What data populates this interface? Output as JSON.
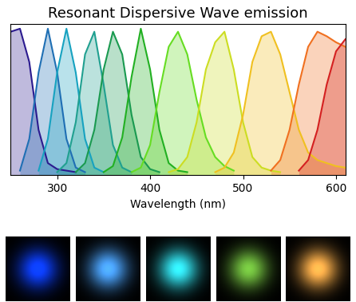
{
  "chart_data": {
    "type": "area",
    "title": "Resonant Dispersive Wave emission",
    "x_label": "Wavelength (nm)",
    "xlim": [
      250,
      610
    ],
    "xticks": [
      300,
      400,
      500,
      600
    ],
    "ylim": [
      0,
      1.0
    ],
    "tick_labels": "x",
    "grid": false,
    "series": [
      {
        "color": "#2b1b8f",
        "x": [
          250,
          260,
          270,
          280,
          290,
          300,
          310,
          320
        ],
        "values": [
          0.95,
          0.97,
          0.75,
          0.3,
          0.08,
          0.04,
          0.03,
          0.02
        ]
      },
      {
        "color": "#1f6fb4",
        "x": [
          260,
          270,
          280,
          290,
          300,
          310,
          320,
          330
        ],
        "values": [
          0.03,
          0.24,
          0.68,
          0.97,
          0.68,
          0.24,
          0.05,
          0.02
        ]
      },
      {
        "color": "#17a2c0",
        "x": [
          280,
          290,
          300,
          310,
          320,
          330,
          340,
          350
        ],
        "values": [
          0.03,
          0.24,
          0.68,
          0.97,
          0.68,
          0.24,
          0.05,
          0.02
        ]
      },
      {
        "color": "#20a090",
        "x": [
          300,
          310,
          320,
          330,
          340,
          350,
          360,
          370,
          380
        ],
        "values": [
          0.02,
          0.08,
          0.35,
          0.8,
          0.95,
          0.6,
          0.2,
          0.05,
          0.02
        ]
      },
      {
        "color": "#1a9a50",
        "x": [
          320,
          330,
          340,
          350,
          360,
          370,
          380,
          390,
          400,
          410
        ],
        "values": [
          0.02,
          0.08,
          0.3,
          0.7,
          0.95,
          0.8,
          0.4,
          0.12,
          0.04,
          0.02
        ]
      },
      {
        "color": "#22b022",
        "x": [
          350,
          360,
          370,
          380,
          390,
          400,
          410,
          420,
          430,
          440
        ],
        "values": [
          0.02,
          0.06,
          0.25,
          0.65,
          0.97,
          0.7,
          0.3,
          0.08,
          0.03,
          0.02
        ]
      },
      {
        "color": "#66dd22",
        "x": [
          380,
          390,
          400,
          410,
          420,
          430,
          440,
          450,
          460,
          470,
          480,
          490
        ],
        "values": [
          0.02,
          0.05,
          0.2,
          0.55,
          0.85,
          0.95,
          0.8,
          0.5,
          0.25,
          0.12,
          0.06,
          0.03
        ]
      },
      {
        "color": "#ccdd22",
        "x": [
          420,
          430,
          440,
          450,
          460,
          470,
          480,
          490,
          500,
          510,
          520,
          530,
          540
        ],
        "values": [
          0.02,
          0.04,
          0.12,
          0.35,
          0.7,
          0.88,
          0.95,
          0.7,
          0.35,
          0.12,
          0.05,
          0.03,
          0.02
        ]
      },
      {
        "color": "#f0c020",
        "x": [
          470,
          480,
          490,
          500,
          510,
          520,
          530,
          540,
          550,
          560,
          570,
          580,
          590,
          600,
          610
        ],
        "values": [
          0.02,
          0.05,
          0.15,
          0.4,
          0.75,
          0.92,
          0.95,
          0.8,
          0.55,
          0.3,
          0.15,
          0.1,
          0.08,
          0.06,
          0.05
        ]
      },
      {
        "color": "#f07020",
        "x": [
          530,
          540,
          550,
          560,
          570,
          580,
          590,
          600,
          610
        ],
        "values": [
          0.03,
          0.1,
          0.3,
          0.6,
          0.85,
          0.95,
          0.92,
          0.88,
          0.85
        ]
      },
      {
        "color": "#d42020",
        "x": [
          560,
          570,
          580,
          590,
          600,
          610
        ],
        "values": [
          0.03,
          0.1,
          0.3,
          0.6,
          0.82,
          0.9
        ]
      }
    ]
  }
}
